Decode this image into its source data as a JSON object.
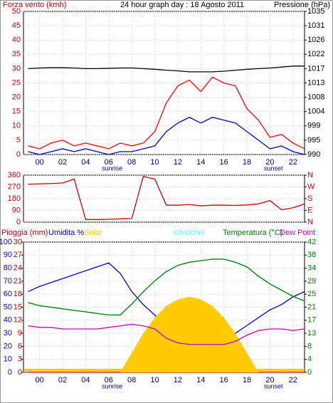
{
  "chart_data": [
    {
      "type": "line",
      "title": "24 hour graph day : 18 Agosto 2011",
      "y_label": "Forza vento (kmh)",
      "y2_label": "Pressione (hPa)",
      "x": [
        -1,
        0,
        1,
        2,
        3,
        4,
        5,
        6,
        7,
        8,
        9,
        10,
        11,
        12,
        13,
        14,
        15,
        16,
        17,
        18,
        19,
        20,
        21,
        22,
        23
      ],
      "xlim": [
        -1.4,
        23
      ],
      "xticks": [
        {
          "value": 0,
          "label": "00"
        },
        {
          "value": 2,
          "label": "02"
        },
        {
          "value": 4,
          "label": "04"
        },
        {
          "value": 6,
          "label": "06"
        },
        {
          "value": 8,
          "label": "08"
        },
        {
          "value": 10,
          "label": "10"
        },
        {
          "value": 12,
          "label": "12"
        },
        {
          "value": 14,
          "label": "14"
        },
        {
          "value": 16,
          "label": "16"
        },
        {
          "value": 18,
          "label": "18"
        },
        {
          "value": 20,
          "label": "20"
        },
        {
          "value": 22,
          "label": "22"
        }
      ],
      "ylim": [
        0,
        50
      ],
      "yticks": [
        0,
        5,
        10,
        15,
        20,
        25,
        30,
        35,
        40,
        45,
        50
      ],
      "ytick_color": "#cc0000",
      "y2lim": [
        990,
        1035
      ],
      "y2ticks": [
        990,
        {
          "value": 994.5,
          "label": "995"
        },
        999,
        {
          "value": 1003.5,
          "label": "1004"
        },
        1008,
        {
          "value": 1012.5,
          "label": "1013"
        },
        1017,
        {
          "value": 1021.5,
          "label": "1022"
        },
        1026,
        {
          "value": 1030.5,
          "label": "1031"
        },
        1035
      ],
      "grid": true,
      "annotations": [
        {
          "text": "sunrise",
          "x": 6.3
        },
        {
          "text": "sunset",
          "x": 20.3
        }
      ],
      "series": [
        {
          "color": "#000000",
          "axis": "y2",
          "values": [
            1017,
            1017.2,
            1017.3,
            1017.3,
            1017.2,
            1017,
            1017,
            1017.1,
            1017.2,
            1017.2,
            1017,
            1016.8,
            1016.5,
            1016.3,
            1016,
            1016,
            1016,
            1016.2,
            1016.5,
            1016.8,
            1017,
            1017.2,
            1017.5,
            1017.8,
            1017.8
          ]
        },
        {
          "color": "#ff0000",
          "values": [
            3,
            2,
            4,
            5,
            3,
            4,
            3,
            2,
            4,
            3,
            4,
            8,
            18,
            24,
            26,
            22,
            27,
            25,
            24,
            16,
            12,
            6,
            7,
            4,
            2
          ]
        },
        {
          "color": "#0000cc",
          "values": [
            1,
            0,
            1,
            2,
            1,
            2,
            1,
            0,
            1,
            1,
            2,
            3,
            8,
            11,
            13,
            11,
            13,
            12,
            11,
            8,
            5,
            2,
            3,
            1,
            0
          ]
        }
      ]
    },
    {
      "type": "line",
      "x": [
        -1,
        0,
        1,
        2,
        3,
        4,
        5,
        6,
        7,
        8,
        9,
        10,
        11,
        12,
        13,
        14,
        15,
        16,
        17,
        18,
        19,
        20,
        21,
        22,
        23
      ],
      "xlim": [
        -1.4,
        23
      ],
      "ylim": [
        0,
        360
      ],
      "yticks": [
        0,
        90,
        180,
        270,
        360
      ],
      "ytick_color": "#cc0000",
      "y2lim": [
        0,
        360
      ],
      "y2ticks": [
        {
          "value": 0,
          "label": "N"
        },
        {
          "value": 90,
          "label": "E"
        },
        {
          "value": 180,
          "label": "S"
        },
        {
          "value": 270,
          "label": "W"
        },
        {
          "value": 360,
          "label": "N"
        }
      ],
      "y2tick_color": "#cc0000",
      "grid": true,
      "series": [
        {
          "color": "#cc0000",
          "values": [
            290,
            293,
            296,
            300,
            330,
            20,
            20,
            22,
            25,
            28,
            350,
            330,
            130,
            130,
            135,
            125,
            130,
            130,
            128,
            132,
            140,
            165,
            95,
            110,
            140
          ]
        }
      ]
    },
    {
      "type": "line",
      "x": [
        -1,
        0,
        1,
        2,
        3,
        4,
        5,
        6,
        7,
        8,
        9,
        10,
        11,
        12,
        13,
        14,
        15,
        16,
        17,
        18,
        19,
        20,
        21,
        22,
        23
      ],
      "xlim": [
        -1.4,
        23
      ],
      "xticks": [
        {
          "value": 0,
          "label": "00"
        },
        {
          "value": 2,
          "label": "02"
        },
        {
          "value": 4,
          "label": "04"
        },
        {
          "value": 6,
          "label": "06"
        },
        {
          "value": 8,
          "label": "08"
        },
        {
          "value": 10,
          "label": "10"
        },
        {
          "value": 12,
          "label": "12"
        },
        {
          "value": 14,
          "label": "14"
        },
        {
          "value": 16,
          "label": "16"
        },
        {
          "value": 18,
          "label": "18"
        },
        {
          "value": 20,
          "label": "20"
        },
        {
          "value": 22,
          "label": "22"
        }
      ],
      "ylim": [
        0,
        100
      ],
      "yticks": [
        0,
        10,
        20,
        30,
        40,
        50,
        60,
        70,
        80,
        90,
        100
      ],
      "ytick_color": "#0000cc",
      "y3lim": [
        0,
        30
      ],
      "y3ticks": [
        0,
        3,
        6,
        9,
        12,
        15,
        18,
        21,
        24,
        27,
        30
      ],
      "y3tick_color": "#cc0000",
      "y4lim": [
        0,
        1000
      ],
      "y2lim": [
        0,
        42
      ],
      "y2ticks": [
        0,
        {
          "value": 4.2,
          "label": "4"
        },
        {
          "value": 8.4,
          "label": "8"
        },
        {
          "value": 12.6,
          "label": "13"
        },
        {
          "value": 16.8,
          "label": "17"
        },
        21,
        {
          "value": 25.2,
          "label": "25"
        },
        {
          "value": 29.4,
          "label": "29"
        },
        {
          "value": 33.6,
          "label": "34"
        },
        {
          "value": 37.8,
          "label": "38"
        },
        42
      ],
      "y2tick_color": "#008000",
      "grid": true,
      "annotations": [
        {
          "text": "sunrise",
          "x": 6.3
        },
        {
          "text": "sunset",
          "x": 20.3
        }
      ],
      "series": [
        {
          "name": "Pioggia (mm)",
          "color": "#cc0000",
          "axis": "y3",
          "values": [
            0,
            0,
            0,
            0,
            0,
            0,
            0,
            0,
            0,
            0,
            0,
            0,
            0,
            0,
            0,
            0,
            0,
            0,
            0,
            0,
            0,
            0,
            0,
            0,
            0
          ]
        },
        {
          "name": "Umidita %",
          "color": "#0000cc",
          "values": [
            62,
            66,
            69,
            72,
            75,
            78,
            81,
            84,
            76,
            62,
            52,
            44,
            36,
            30,
            28,
            27,
            26,
            26,
            30,
            36,
            42,
            48,
            52,
            58,
            62
          ]
        },
        {
          "name": "Solar",
          "color": "#ffcc00",
          "axis": "y4",
          "area": true,
          "values": [
            0,
            0,
            0,
            0,
            0,
            0,
            0,
            0,
            0,
            150,
            300,
            420,
            510,
            560,
            580,
            560,
            510,
            420,
            300,
            150,
            0,
            0,
            0,
            0,
            0
          ]
        },
        {
          "name": "Windchill",
          "color": "#66ffff",
          "axis": "y2",
          "values": [
            22.5,
            21.5,
            21,
            20.5,
            20,
            19.5,
            19,
            18.5,
            18.5,
            22,
            26,
            29.5,
            32.5,
            34.5,
            35.5,
            36,
            36.5,
            36.5,
            35.5,
            34,
            31,
            28.5,
            26.5,
            24.5,
            23
          ]
        },
        {
          "name": "Temperatura (°C)",
          "color": "#008000",
          "axis": "y2",
          "values": [
            22.5,
            21.5,
            21,
            20.5,
            20,
            19.5,
            19,
            18.5,
            18.5,
            22,
            26,
            29.5,
            32.5,
            34.5,
            35.5,
            36,
            36.5,
            36.5,
            35.5,
            34,
            31,
            28.5,
            26.5,
            24.5,
            23
          ]
        },
        {
          "name": "Dew Point",
          "color": "#cc00cc",
          "axis": "y2",
          "values": [
            15,
            14.5,
            14.5,
            14,
            14,
            14,
            14,
            14.5,
            15,
            15.5,
            15,
            14,
            11,
            9.5,
            9,
            9,
            9,
            9,
            10,
            12,
            13.5,
            14,
            14,
            13.5,
            14
          ]
        }
      ]
    }
  ]
}
